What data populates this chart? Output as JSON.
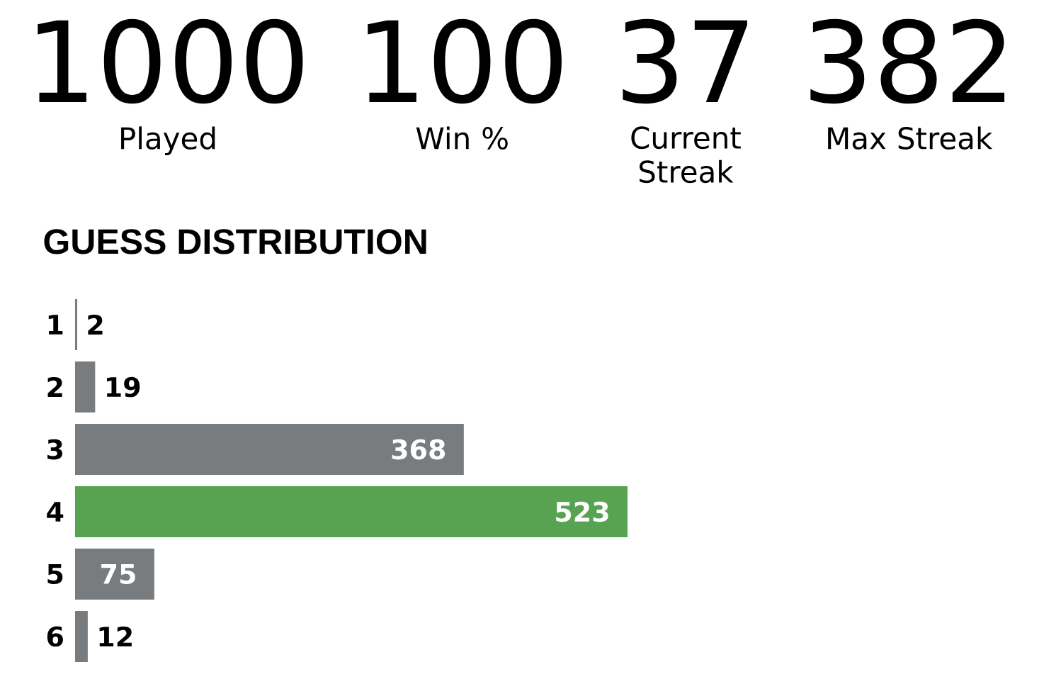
{
  "chart_data": [
    {
      "type": "other",
      "categories": [
        "Played",
        "Win %",
        "Current Streak",
        "Max Streak"
      ],
      "values": [
        1000,
        100,
        37,
        382
      ],
      "data_labels": true
    },
    {
      "type": "bar",
      "orientation": "horizontal",
      "title": "GUESS DISTRIBUTION",
      "categories": [
        "1",
        "2",
        "3",
        "4",
        "5",
        "6"
      ],
      "values": [
        2,
        19,
        368,
        523,
        75,
        12
      ],
      "colors": [
        "#787c7e",
        "#787c7e",
        "#787c7e",
        "#58a351",
        "#787c7e",
        "#787c7e"
      ],
      "data_labels": true,
      "tick_labels": "y"
    }
  ]
}
